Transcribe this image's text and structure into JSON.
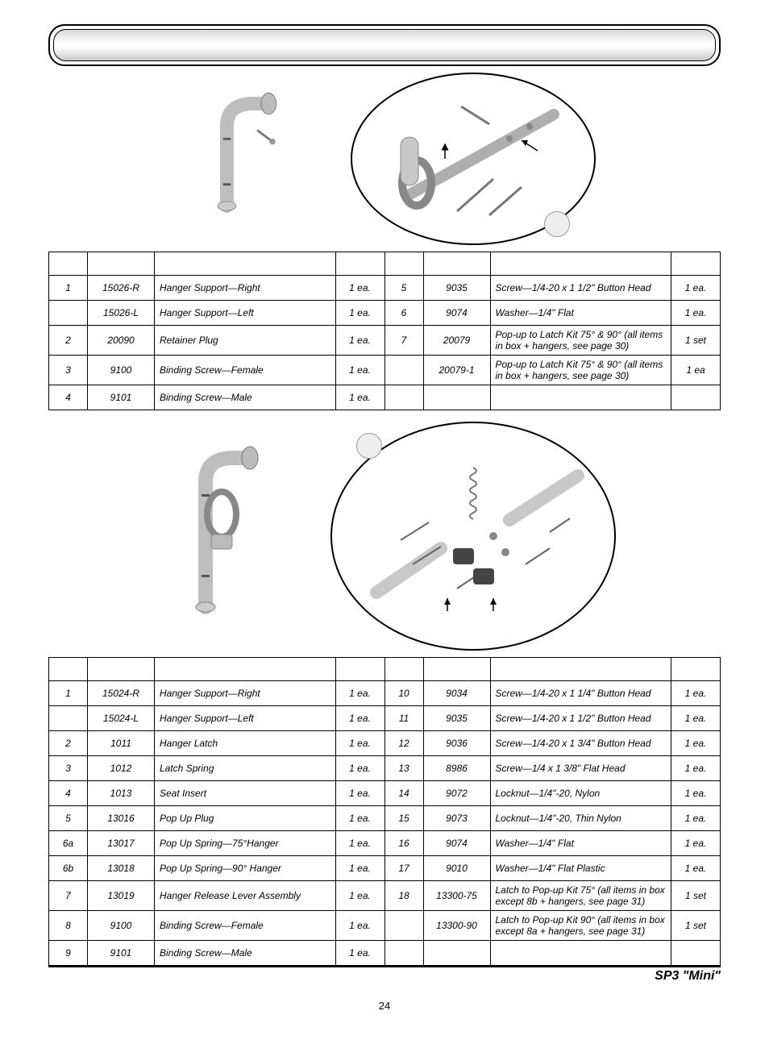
{
  "footer": {
    "label": "SP3 \"Mini\"",
    "page_number": "24"
  },
  "table1": {
    "rows": [
      {
        "pos": "1",
        "part": "15026-R",
        "desc": "Hanger Support—Right",
        "qty": "1 ea.",
        "pos2": "5",
        "part2": "9035",
        "desc2": "Screw—1/4-20 x 1 1/2\" Button Head",
        "qty2": "1 ea."
      },
      {
        "pos": "",
        "part": "15026-L",
        "desc": "Hanger Support—Left",
        "qty": "1 ea.",
        "pos2": "6",
        "part2": "9074",
        "desc2": "Washer—1/4\" Flat",
        "qty2": "1 ea."
      },
      {
        "pos": "2",
        "part": "20090",
        "desc": "Retainer Plug",
        "qty": "1 ea.",
        "pos2": "7",
        "part2": "20079",
        "desc2": "Pop-up to Latch Kit 75° & 90° (all items in box + hangers, see page 30)",
        "qty2": "1 set"
      },
      {
        "pos": "3",
        "part": "9100",
        "desc": "Binding Screw—Female",
        "qty": "1 ea.",
        "pos2": "",
        "part2": "20079-1",
        "desc2": "Pop-up to Latch Kit 75° & 90° (all items in box + hangers, see page 30)",
        "qty2": "1 ea"
      },
      {
        "pos": "4",
        "part": "9101",
        "desc": "Binding Screw—Male",
        "qty": "1 ea.",
        "pos2": "",
        "part2": "",
        "desc2": "",
        "qty2": ""
      }
    ]
  },
  "table2": {
    "rows": [
      {
        "pos": "1",
        "part": "15024-R",
        "desc": "Hanger Support—Right",
        "qty": "1 ea.",
        "pos2": "10",
        "part2": "9034",
        "desc2": "Screw—1/4-20 x 1 1/4\" Button Head",
        "qty2": "1 ea."
      },
      {
        "pos": "",
        "part": "15024-L",
        "desc": "Hanger Support—Left",
        "qty": "1 ea.",
        "pos2": "11",
        "part2": "9035",
        "desc2": "Screw—1/4-20 x 1 1/2\" Button Head",
        "qty2": "1 ea."
      },
      {
        "pos": "2",
        "part": "1011",
        "desc": "Hanger Latch",
        "qty": "1 ea.",
        "pos2": "12",
        "part2": "9036",
        "desc2": "Screw—1/4-20 x 1 3/4\" Button Head",
        "qty2": "1 ea."
      },
      {
        "pos": "3",
        "part": "1012",
        "desc": "Latch Spring",
        "qty": "1 ea.",
        "pos2": "13",
        "part2": "8986",
        "desc2": "Screw—1/4 x 1 3/8\" Flat Head",
        "qty2": "1 ea."
      },
      {
        "pos": "4",
        "part": "1013",
        "desc": "Seat Insert",
        "qty": "1 ea.",
        "pos2": "14",
        "part2": "9072",
        "desc2": "Locknut—1/4\"-20, Nylon",
        "qty2": "1 ea."
      },
      {
        "pos": "5",
        "part": "13016",
        "desc": "Pop Up Plug",
        "qty": "1 ea.",
        "pos2": "15",
        "part2": "9073",
        "desc2": "Locknut—1/4\"-20, Thin Nylon",
        "qty2": "1 ea."
      },
      {
        "pos": "6a",
        "part": "13017",
        "desc": "Pop Up Spring—75°Hanger",
        "qty": "1 ea.",
        "pos2": "16",
        "part2": "9074",
        "desc2": "Washer—1/4\" Flat",
        "qty2": "1 ea."
      },
      {
        "pos": "6b",
        "part": "13018",
        "desc": "Pop Up Spring—90° Hanger",
        "qty": "1 ea.",
        "pos2": "17",
        "part2": "9010",
        "desc2": "Washer—1/4\" Flat Plastic",
        "qty2": "1 ea."
      },
      {
        "pos": "7",
        "part": "13019",
        "desc": "Hanger Release Lever Assembly",
        "qty": "1 ea.",
        "pos2": "18",
        "part2": "13300-75",
        "desc2": "Latch to Pop-up Kit 75° (all items in box except 8b + hangers, see page 31)",
        "qty2": "1 set"
      },
      {
        "pos": "8",
        "part": "9100",
        "desc": "Binding Screw—Female",
        "qty": "1 ea.",
        "pos2": "",
        "part2": "13300-90",
        "desc2": "Latch to Pop-up Kit 90° (all items in box except 8a + hangers, see page 31)",
        "qty2": "1 set"
      },
      {
        "pos": "9",
        "part": "9101",
        "desc": "Binding Screw—Male",
        "qty": "1 ea.",
        "pos2": "",
        "part2": "",
        "desc2": "",
        "qty2": ""
      }
    ]
  }
}
